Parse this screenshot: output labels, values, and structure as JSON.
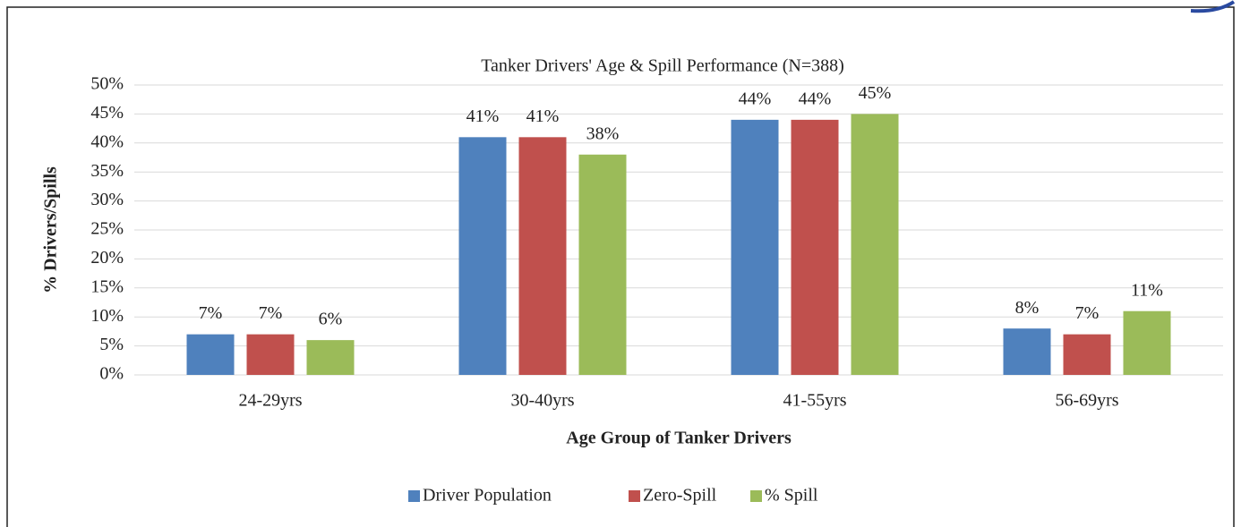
{
  "chart_data": {
    "type": "bar",
    "title": "Tanker Drivers' Age & Spill Performance (N=388)",
    "x_label": "Age Group of Tanker Drivers",
    "y_label": "% Drivers/Spills",
    "categories": [
      "24-29yrs",
      "30-40yrs",
      "41-55yrs",
      "56-69yrs"
    ],
    "series": [
      {
        "name": "Driver Population",
        "color": "#4f81bd",
        "values": [
          7,
          41,
          44,
          8
        ],
        "value_labels": [
          "7%",
          "41%",
          "44%",
          "8%"
        ]
      },
      {
        "name": "Zero-Spill",
        "color": "#c0504d",
        "values": [
          7,
          41,
          44,
          7
        ],
        "value_labels": [
          "7%",
          "41%",
          "44%",
          "7%"
        ]
      },
      {
        "name": "% Spill",
        "color": "#9bbb59",
        "values": [
          6,
          38,
          45,
          11
        ],
        "value_labels": [
          "6%",
          "38%",
          "45%",
          "11%"
        ]
      }
    ],
    "ylim": [
      0,
      50
    ],
    "yticks": [
      {
        "value": 0,
        "label": "0%"
      },
      {
        "value": 5,
        "label": "5%"
      },
      {
        "value": 10,
        "label": "10%"
      },
      {
        "value": 15,
        "label": "15%"
      },
      {
        "value": 20,
        "label": "20%"
      },
      {
        "value": 25,
        "label": "25%"
      },
      {
        "value": 30,
        "label": "30%"
      },
      {
        "value": 35,
        "label": "35%"
      },
      {
        "value": 40,
        "label": "40%"
      },
      {
        "value": 45,
        "label": "45%"
      },
      {
        "value": 50,
        "label": "50%"
      }
    ],
    "grid": true,
    "legend": "bottom"
  }
}
